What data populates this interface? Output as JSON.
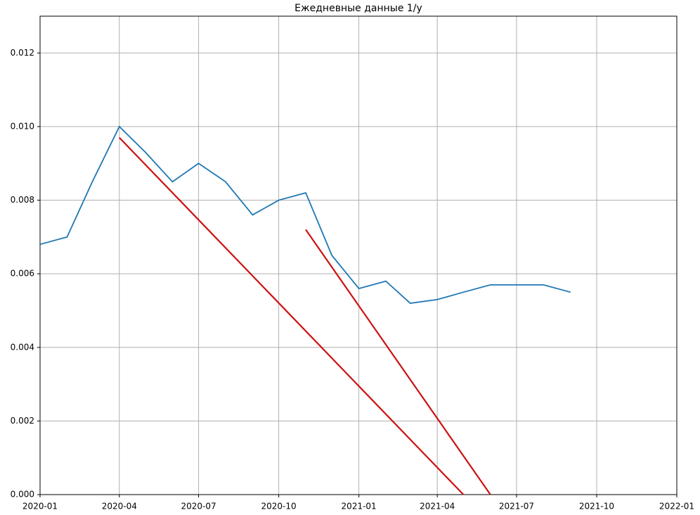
{
  "chart_data": {
    "type": "line",
    "title": "Ежедневные данные 1/y",
    "xlim": [
      "2020-01",
      "2022-01"
    ],
    "xticks": [
      "2020-01",
      "2020-04",
      "2020-07",
      "2020-10",
      "2021-01",
      "2021-04",
      "2021-07",
      "2021-10",
      "2022-01"
    ],
    "ylim": [
      0,
      0.013
    ],
    "yticks": [
      {
        "value": 0,
        "label": "0.000"
      },
      {
        "value": 0.002,
        "label": "0.002"
      },
      {
        "value": 0.004,
        "label": "0.004"
      },
      {
        "value": 0.006,
        "label": "0.006"
      },
      {
        "value": 0.008,
        "label": "0.008"
      },
      {
        "value": 0.01,
        "label": "0.010"
      },
      {
        "value": 0.012,
        "label": "0.012"
      }
    ],
    "grid": true,
    "series": [
      {
        "color": "#1f77b4",
        "x": [
          "2020-01",
          "2020-02",
          "2020-03",
          "2020-04",
          "2020-05",
          "2020-06",
          "2020-07",
          "2020-08",
          "2020-09",
          "2020-10",
          "2020-11",
          "2020-12",
          "2021-01",
          "2021-02",
          "2021-03",
          "2021-04",
          "2021-05",
          "2021-06",
          "2021-07",
          "2021-08",
          "2021-09"
        ],
        "values": [
          0.0068,
          0.007,
          0.0085,
          0.01,
          0.0093,
          0.0085,
          0.009,
          0.0085,
          0.0076,
          0.008,
          0.0082,
          0.0065,
          0.0056,
          0.0058,
          0.0052,
          0.0053,
          0.0055,
          0.0057,
          0.0057,
          0.0057,
          0.0055
        ]
      },
      {
        "color": "#cc1111",
        "x": [
          "2020-04",
          "2021-05"
        ],
        "values": [
          0.0097,
          0
        ]
      },
      {
        "color": "#cc1111",
        "x": [
          "2020-11",
          "2021-06"
        ],
        "values": [
          0.0072,
          0
        ]
      }
    ]
  }
}
